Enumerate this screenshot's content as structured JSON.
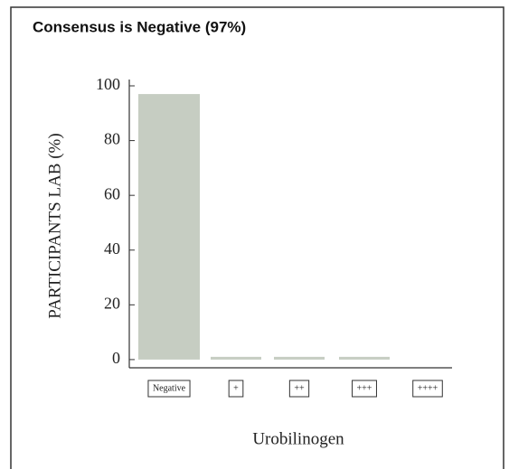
{
  "chart_data": {
    "type": "bar",
    "title": "Consensus is Negative (97%)",
    "categories": [
      "Negative",
      "+",
      "++",
      "+++",
      "++++"
    ],
    "values": [
      97,
      1,
      1,
      1,
      0
    ],
    "color": "#c6cdc2",
    "ylim": [
      -3,
      100
    ],
    "yticks": [
      0,
      20,
      40,
      60,
      80,
      100
    ],
    "ylabel": "PARTICIPANTS LAB  (%)",
    "xlabel": "Urobilinogen"
  }
}
